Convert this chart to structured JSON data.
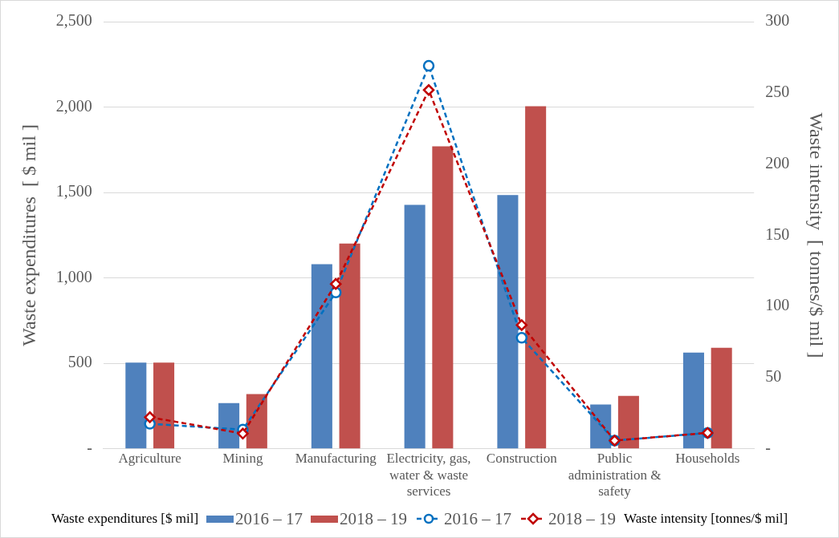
{
  "chart_data": {
    "type": "bar",
    "categories": [
      "Agriculture",
      "Mining",
      "Manufacturing",
      "Electricity, gas, water & waste services",
      "Construction",
      "Public administration & safety",
      "Households"
    ],
    "ylabel": "Waste expenditures  [ $ mil ]",
    "y2label": "Waste intensity  [ tonnes/$ mil ]",
    "ylim": [
      0,
      2500
    ],
    "yticks": [
      {
        "value": 0,
        "label": "-"
      },
      {
        "value": 500,
        "label": "500"
      },
      {
        "value": 1000,
        "label": "1,000"
      },
      {
        "value": 1500,
        "label": "1,500"
      },
      {
        "value": 2000,
        "label": "2,000"
      },
      {
        "value": 2500,
        "label": "2,500"
      }
    ],
    "y2lim": [
      0,
      300
    ],
    "y2ticks": [
      {
        "value": 0,
        "label": "-"
      },
      50,
      100,
      150,
      200,
      250,
      300
    ],
    "grid": "y",
    "legend": "bottom",
    "annotations": [
      "Waste expenditures [$ mil]",
      "Waste intensity [tonnes/$ mil]"
    ],
    "series": [
      {
        "name": "2016 – 17",
        "color": "#4f81bd",
        "values": [
          505,
          268,
          1081,
          1428,
          1485,
          259,
          563
        ]
      },
      {
        "name": "2018 – 19",
        "color": "#c0504d",
        "values": [
          505,
          320,
          1201,
          1770,
          2005,
          310,
          591
        ]
      },
      {
        "type": "line",
        "axis": "y2",
        "name": "2016 – 17",
        "color": "#0070c0",
        "marker": "circle",
        "line_style": "dashed",
        "values": [
          17.6,
          13.5,
          109.8,
          269,
          78,
          5.8,
          11.2
        ]
      },
      {
        "type": "line",
        "axis": "y2",
        "name": "2018 – 19",
        "color": "#c00000",
        "marker": "diamond",
        "line_style": "dashed",
        "values": [
          22.2,
          10.7,
          115.8,
          252,
          86.9,
          5.8,
          11.2
        ]
      }
    ]
  }
}
